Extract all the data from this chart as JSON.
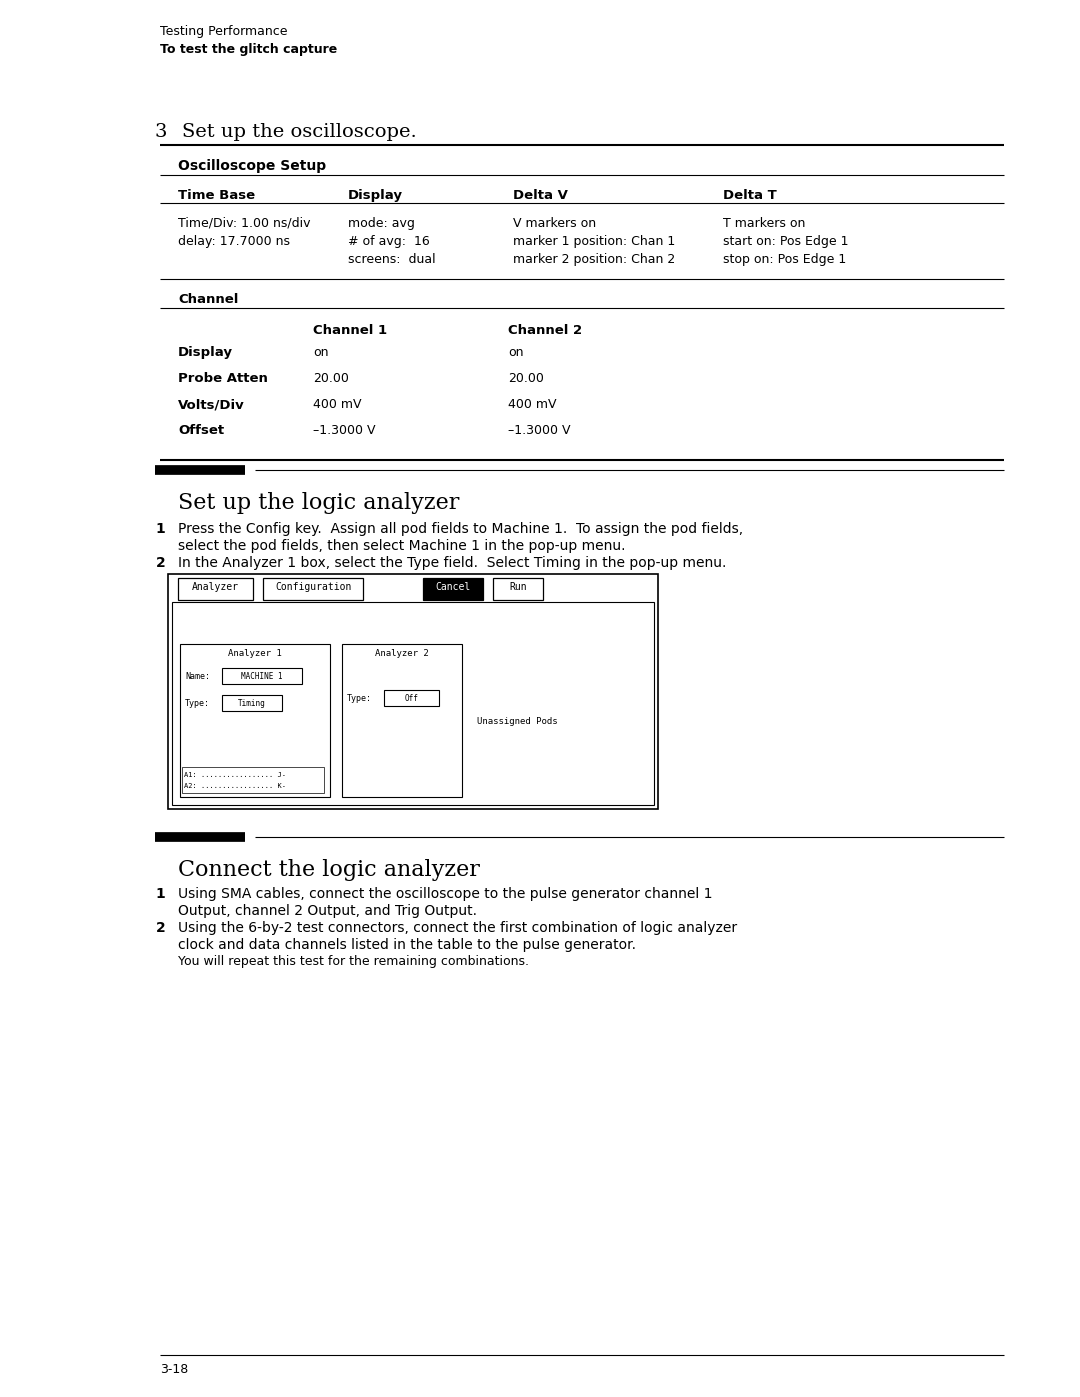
{
  "bg_color": "#ffffff",
  "header_line1": "Testing Performance",
  "header_line2": "To test the glitch capture",
  "section3_label": "3",
  "section3_text": "Set up the oscilloscope.",
  "osc_setup_label": "Oscilloscope Setup",
  "col_headers": [
    "Time Base",
    "Display",
    "Delta V",
    "Delta T"
  ],
  "time_base_rows": [
    "Time/Div: 1.00 ns/div",
    "delay: 17.7000 ns"
  ],
  "display_rows": [
    "mode: avg",
    "# of avg:  16",
    "screens:  dual"
  ],
  "deltav_rows": [
    "V markers on",
    "marker 1 position: Chan 1",
    "marker 2 position: Chan 2"
  ],
  "deltat_rows": [
    "T markers on",
    "start on: Pos Edge 1",
    "stop on: Pos Edge 1"
  ],
  "channel_label": "Channel",
  "ch_headers": [
    "Channel 1",
    "Channel 2"
  ],
  "ch_rows": [
    {
      "label": "Display",
      "ch1": "on",
      "ch2": "on"
    },
    {
      "label": "Probe Atten",
      "ch1": "20.00",
      "ch2": "20.00"
    },
    {
      "label": "Volts/Div",
      "ch1": "400 mV",
      "ch2": "400 mV"
    },
    {
      "label": "Offset",
      "ch1": "–1.3000 V",
      "ch2": "–1.3000 V"
    }
  ],
  "logic_title": "Set up the logic analyzer",
  "logic_step1a": "Press the Config key.  Assign all pod fields to Machine 1.  To assign the pod fields,",
  "logic_step1b": "select the pod fields, then select Machine 1 in the pop-up menu.",
  "logic_step2": "In the Analyzer 1 box, select the Type field.  Select Timing in the pop-up menu.",
  "connect_title": "Connect the logic analyzer",
  "conn_step1a": "Using SMA cables, connect the oscilloscope to the pulse generator channel 1",
  "conn_step1b": "Output, channel 2 Output, and Trig Output.",
  "conn_step2a": "Using the 6-by-2 test connectors, connect the first combination of logic analyzer",
  "conn_step2b": "clock and data channels listed in the table to the pulse generator.",
  "conn_step2c": "You will repeat this test for the remaining combinations.",
  "page_number": "3-18",
  "lm": 0.148,
  "rm": 0.93,
  "ti": 0.165
}
